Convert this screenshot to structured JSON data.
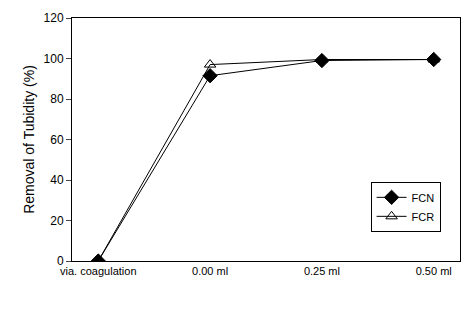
{
  "chart_data": {
    "type": "line",
    "y_label": "Removal of Tubidity (%)",
    "categories": [
      "via. coagulation",
      "0.00 ml",
      "0.25 ml",
      "0.50 ml"
    ],
    "series": [
      {
        "name": "FCN",
        "color": "#000000",
        "marker": "diamond",
        "values": [
          0,
          91.5,
          99,
          99.5
        ]
      },
      {
        "name": "FCR",
        "color": "#000000",
        "marker": "triangle-up-open",
        "values": [
          0,
          97,
          99.5,
          99.5
        ]
      }
    ],
    "ylim": [
      0,
      120
    ],
    "yticks": [
      0,
      20,
      40,
      60,
      80,
      100,
      120
    ],
    "grid": false,
    "legend": "lower right"
  }
}
